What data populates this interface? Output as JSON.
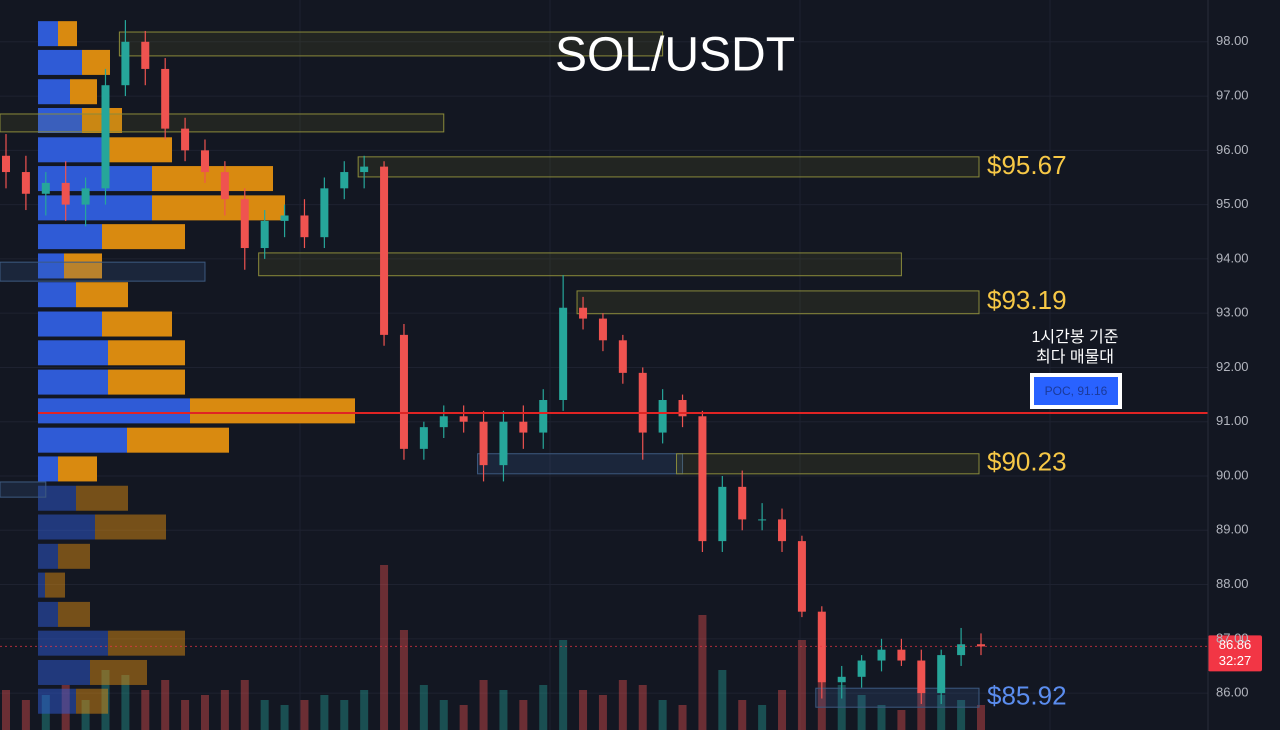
{
  "chart_data": {
    "type": "candlestick",
    "title": "SOL/USDT",
    "ylim": [
      85.32,
      98.77
    ],
    "yticks": [
      {
        "value": 98,
        "label": "98.00"
      },
      {
        "value": 97,
        "label": "97.00"
      },
      {
        "value": 96,
        "label": "96.00"
      },
      {
        "value": 95,
        "label": "95.00"
      },
      {
        "value": 94,
        "label": "94.00"
      },
      {
        "value": 93,
        "label": "93.00"
      },
      {
        "value": 92,
        "label": "92.00"
      },
      {
        "value": 91,
        "label": "91.00"
      },
      {
        "value": 90,
        "label": "90.00"
      },
      {
        "value": 89,
        "label": "89.00"
      },
      {
        "value": 88,
        "label": "88.00"
      },
      {
        "value": 87,
        "label": "87.00"
      },
      {
        "value": 86,
        "label": "86.00"
      }
    ],
    "grid": true,
    "up_color": "#26a69a",
    "down_color": "#ef5350",
    "open": [
      95.9,
      95.6,
      95.2,
      95.4,
      95.0,
      95.3,
      97.2,
      98.0,
      97.5,
      96.4,
      96.0,
      95.6,
      95.1,
      94.2,
      94.7,
      94.8,
      94.4,
      95.3,
      95.6,
      95.7,
      92.6,
      90.5,
      90.9,
      91.1,
      91.0,
      90.2,
      91.0,
      90.8,
      91.4,
      93.1,
      92.9,
      92.5,
      91.9,
      90.8,
      91.4,
      91.1,
      88.8,
      89.8,
      89.2,
      89.2,
      88.8,
      87.5,
      86.2,
      86.3,
      86.6,
      86.8,
      86.6,
      86.0,
      86.7,
      86.9
    ],
    "high": [
      96.3,
      95.9,
      95.6,
      95.8,
      95.5,
      97.5,
      98.4,
      98.2,
      97.7,
      96.6,
      96.2,
      95.8,
      95.3,
      94.9,
      95.0,
      95.1,
      95.5,
      95.8,
      95.9,
      95.8,
      92.8,
      91.0,
      91.3,
      91.3,
      91.2,
      91.2,
      91.3,
      91.6,
      93.7,
      93.3,
      93.0,
      92.6,
      92.0,
      91.6,
      91.5,
      91.2,
      90.0,
      90.1,
      89.5,
      89.4,
      88.9,
      87.6,
      86.5,
      86.7,
      87.0,
      87.0,
      86.8,
      86.8,
      87.2,
      87.1
    ],
    "low": [
      95.3,
      94.9,
      94.8,
      94.7,
      94.6,
      95.0,
      97.0,
      97.2,
      96.2,
      95.8,
      95.4,
      94.8,
      93.8,
      94.0,
      94.4,
      94.2,
      94.2,
      95.1,
      95.3,
      92.4,
      90.3,
      90.3,
      90.7,
      90.8,
      89.9,
      89.9,
      90.5,
      90.5,
      91.2,
      92.7,
      92.3,
      91.7,
      90.3,
      90.6,
      90.9,
      88.6,
      88.6,
      89.0,
      89.0,
      88.6,
      87.4,
      85.9,
      85.9,
      86.1,
      86.4,
      86.5,
      85.8,
      85.8,
      86.5,
      86.7
    ],
    "close": [
      95.6,
      95.2,
      95.4,
      95.0,
      95.3,
      97.2,
      98.0,
      97.5,
      96.4,
      96.0,
      95.6,
      95.1,
      94.2,
      94.7,
      94.8,
      94.4,
      95.3,
      95.6,
      95.7,
      92.6,
      90.5,
      90.9,
      91.1,
      91.0,
      90.2,
      91.0,
      90.8,
      91.4,
      93.1,
      92.9,
      92.5,
      91.9,
      90.8,
      91.4,
      91.1,
      88.8,
      89.8,
      89.2,
      89.2,
      88.8,
      87.5,
      86.2,
      86.3,
      86.6,
      86.8,
      86.6,
      86.0,
      86.7,
      86.9,
      86.86
    ],
    "volume": [
      40,
      30,
      35,
      45,
      30,
      60,
      55,
      40,
      50,
      30,
      35,
      40,
      50,
      30,
      25,
      30,
      35,
      30,
      40,
      165,
      100,
      45,
      30,
      25,
      50,
      40,
      30,
      45,
      90,
      40,
      35,
      50,
      45,
      30,
      25,
      115,
      60,
      30,
      25,
      40,
      90,
      110,
      45,
      35,
      25,
      20,
      40,
      35,
      30,
      25
    ],
    "volume_profile": {
      "prices": [
        98.15,
        97.62,
        97.08,
        96.55,
        96.01,
        95.48,
        94.94,
        94.41,
        93.87,
        93.34,
        92.8,
        92.27,
        91.73,
        91.2,
        90.66,
        90.13,
        89.59,
        89.06,
        88.52,
        87.99,
        87.45,
        86.92,
        86.38,
        85.85
      ],
      "buy": [
        20,
        44,
        32,
        44,
        64,
        114,
        114,
        64,
        26,
        38,
        64,
        70,
        70,
        152,
        89,
        20,
        38,
        57,
        20,
        7,
        20,
        70,
        52,
        38
      ],
      "sell": [
        19,
        28,
        27,
        40,
        70,
        121,
        133,
        83,
        38,
        52,
        70,
        77,
        77,
        165,
        102,
        39,
        52,
        71,
        32,
        20,
        32,
        77,
        57,
        32
      ],
      "buy_color": "#2f5bd6",
      "sell_color": "#d98a10"
    },
    "zones": [
      {
        "top": 98.18,
        "bottom": 97.74,
        "start": 6,
        "end": 33,
        "kind": "supply"
      },
      {
        "top": 96.67,
        "bottom": 96.34,
        "start": 0,
        "end": 22,
        "kind": "supply"
      },
      {
        "top": 95.88,
        "bottom": 95.51,
        "start": 18,
        "end": 49,
        "kind": "supply",
        "label": "$95.67"
      },
      {
        "top": 94.11,
        "bottom": 93.69,
        "start": 13,
        "end": 45,
        "kind": "supply"
      },
      {
        "top": 93.94,
        "bottom": 93.59,
        "start": 0,
        "end": 10,
        "kind": "demand"
      },
      {
        "top": 93.41,
        "bottom": 92.99,
        "start": 29,
        "end": 49,
        "kind": "supply",
        "label": "$93.19"
      },
      {
        "top": 90.41,
        "bottom": 90.04,
        "start": 24,
        "end": 34,
        "kind": "demand"
      },
      {
        "top": 90.41,
        "bottom": 90.04,
        "start": 34,
        "end": 49,
        "kind": "supply",
        "label": "$90.23"
      },
      {
        "top": 89.89,
        "bottom": 89.61,
        "start": 0,
        "end": 2,
        "kind": "demand"
      },
      {
        "top": 86.09,
        "bottom": 85.74,
        "start": 41,
        "end": 49,
        "kind": "demand",
        "label": "$85.92"
      }
    ],
    "poc": {
      "value": 91.16,
      "label": "POC, 91.16",
      "note": [
        "1시간봉 기준",
        "최다 매물대"
      ],
      "color": "#e02424"
    },
    "last_price": {
      "value": 86.86,
      "label": "86.86",
      "countdown": "32:27",
      "color": "#f23645"
    }
  }
}
